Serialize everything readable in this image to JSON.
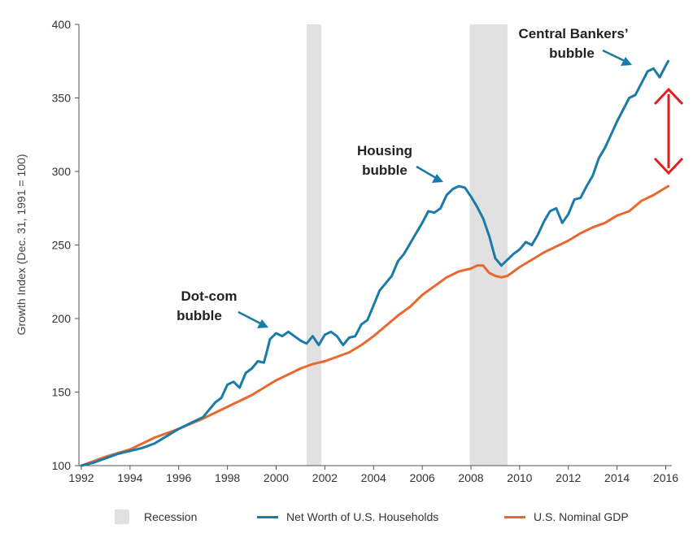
{
  "chart_data": {
    "type": "line",
    "ylabel": "Growth Index (Dec. 31, 1991 = 100)",
    "xlabel": "",
    "xlim": [
      1991.9,
      2016.25
    ],
    "ylim": [
      100,
      400
    ],
    "x_ticks": [
      "1992",
      "1994",
      "1996",
      "1998",
      "2000",
      "2002",
      "2004",
      "2006",
      "2008",
      "2010",
      "2012",
      "2014",
      "2016"
    ],
    "y_ticks": [
      "100",
      "150",
      "200",
      "250",
      "300",
      "350",
      "400"
    ],
    "recessions": [
      [
        2001.25,
        2001.85
      ],
      [
        2007.95,
        2009.5
      ]
    ],
    "series": [
      {
        "name": "Net Worth of U.S. Households",
        "color": "#1a7aa8",
        "x": [
          1992.0,
          1992.5,
          1993.0,
          1993.5,
          1994.0,
          1994.5,
          1995.0,
          1995.5,
          1996.0,
          1996.5,
          1997.0,
          1997.25,
          1997.5,
          1997.75,
          1998.0,
          1998.25,
          1998.5,
          1998.75,
          1999.0,
          1999.25,
          1999.5,
          1999.75,
          2000.0,
          2000.25,
          2000.5,
          2000.75,
          2001.0,
          2001.25,
          2001.5,
          2001.75,
          2002.0,
          2002.25,
          2002.5,
          2002.75,
          2003.0,
          2003.25,
          2003.5,
          2003.75,
          2004.0,
          2004.25,
          2004.5,
          2004.75,
          2005.0,
          2005.25,
          2005.5,
          2005.75,
          2006.0,
          2006.25,
          2006.5,
          2006.75,
          2007.0,
          2007.25,
          2007.5,
          2007.75,
          2008.0,
          2008.25,
          2008.5,
          2008.75,
          2009.0,
          2009.25,
          2009.5,
          2009.75,
          2010.0,
          2010.25,
          2010.5,
          2010.75,
          2011.0,
          2011.25,
          2011.5,
          2011.75,
          2012.0,
          2012.25,
          2012.5,
          2012.75,
          2013.0,
          2013.25,
          2013.5,
          2013.75,
          2014.0,
          2014.25,
          2014.5,
          2014.75,
          2015.0,
          2015.25,
          2015.5,
          2015.75,
          2016.0,
          2016.1
        ],
        "values": [
          100,
          102,
          105,
          108,
          110,
          112,
          115,
          120,
          125,
          129,
          133,
          138,
          143,
          146,
          155,
          157,
          153,
          163,
          166,
          171,
          170,
          186,
          190,
          188,
          191,
          188,
          185,
          183,
          188,
          182,
          189,
          191,
          188,
          182,
          187,
          188,
          196,
          199,
          209,
          219,
          224,
          229,
          239,
          244,
          251,
          258,
          265,
          273,
          272,
          275,
          284,
          288,
          290,
          289,
          283,
          276,
          268,
          256,
          241,
          236,
          240,
          244,
          247,
          252,
          250,
          257,
          266,
          273,
          275,
          265,
          271,
          281,
          282,
          290,
          297,
          309,
          316,
          325,
          334,
          342,
          350,
          352,
          360,
          368,
          370,
          364,
          372,
          375
        ]
      },
      {
        "name": "U.S. Nominal GDP",
        "color": "#e8692e",
        "x": [
          1992.0,
          1993.0,
          1994.0,
          1995.0,
          1996.0,
          1997.0,
          1998.0,
          1999.0,
          2000.0,
          2000.5,
          2001.0,
          2001.5,
          2002.0,
          2002.5,
          2003.0,
          2003.5,
          2004.0,
          2004.5,
          2005.0,
          2005.5,
          2006.0,
          2006.5,
          2007.0,
          2007.5,
          2008.0,
          2008.25,
          2008.5,
          2008.75,
          2009.0,
          2009.25,
          2009.5,
          2009.75,
          2010.0,
          2010.5,
          2011.0,
          2011.5,
          2012.0,
          2012.5,
          2013.0,
          2013.5,
          2014.0,
          2014.5,
          2015.0,
          2015.5,
          2016.0,
          2016.1
        ],
        "values": [
          100,
          106,
          111,
          119,
          125,
          132,
          140,
          148,
          158,
          162,
          166,
          169,
          171,
          174,
          177,
          182,
          188,
          195,
          202,
          208,
          216,
          222,
          228,
          232,
          234,
          236,
          236,
          231,
          229,
          228,
          229,
          232,
          235,
          240,
          245,
          249,
          253,
          258,
          262,
          265,
          270,
          273,
          280,
          284,
          289,
          290
        ]
      }
    ],
    "legend": [
      {
        "label": "Recession",
        "kind": "box",
        "color": "#e1e1e1"
      },
      {
        "label": "Net Worth of U.S. Households",
        "kind": "line",
        "color": "#1a7aa8"
      },
      {
        "label": "U.S. Nominal GDP",
        "kind": "line",
        "color": "#e8692e"
      }
    ],
    "annotations": [
      {
        "lines": [
          "Dot-com",
          "bubble"
        ]
      },
      {
        "lines": [
          "Housing",
          "bubble"
        ]
      },
      {
        "lines": [
          "Central Bankers’",
          "bubble"
        ]
      }
    ],
    "gap_marker": {
      "color": "#e11d1d"
    },
    "grid": false,
    "legend_position": "bottom"
  }
}
